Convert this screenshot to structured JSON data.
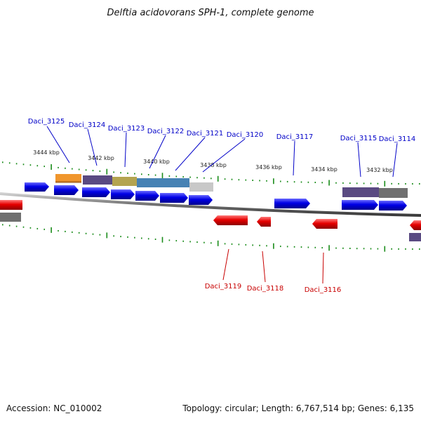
{
  "title": "Delftia acidovorans SPH-1, complete genome",
  "footer": {
    "accession": "Accession: NC_010002",
    "stats": "Topology: circular; Length: 6,767,514 bp; Genes: 6,135"
  },
  "scale_labels": [
    "3444 kbp",
    "3442 kbp",
    "3440 kbp",
    "3438 kbp",
    "3436 kbp",
    "3434 kbp",
    "3432 kbp"
  ],
  "forward_labels": [
    "Daci_3125",
    "Daci_3124",
    "Daci_3123",
    "Daci_3122",
    "Daci_3121",
    "Daci_3120",
    "Daci_3117",
    "Daci_3115",
    "Daci_3114"
  ],
  "reverse_labels": [
    "Daci_3119",
    "Daci_3118",
    "Daci_3116"
  ],
  "colors": {
    "forward_gene": "#0000e6",
    "reverse_gene": "#e60000",
    "backbone": "#808080",
    "tick": "#1a8c1a",
    "cog_orange": "#f0962d",
    "cog_purple": "#5a4a82",
    "cog_olive": "#b4a450",
    "cog_teal": "#4682b4",
    "cog_grey": "#707070",
    "cog_light": "#c8c8c8"
  }
}
